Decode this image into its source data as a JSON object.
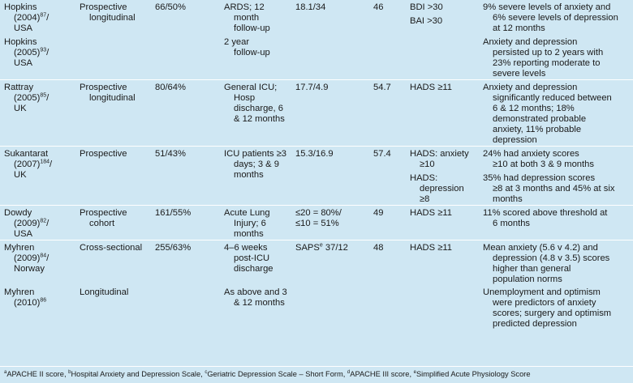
{
  "rows": [
    {
      "study": [
        [
          "Hopkins",
          "(2004)",
          "87",
          "/",
          "USA"
        ],
        [
          "Hopkins",
          "(2005)",
          "93",
          "/",
          "USA"
        ]
      ],
      "design": [
        "Prospective",
        "longitudinal"
      ],
      "n": "66/50%",
      "population": [
        [
          "ARDS; 12",
          "month",
          "follow-up"
        ],
        [
          "2 year",
          "follow-up"
        ]
      ],
      "severity": "18.1/34",
      "age": "46",
      "measure": [
        [
          "BDI >30"
        ],
        [
          "BAI >30"
        ]
      ],
      "findings": [
        [
          "9% severe levels of anxiety and",
          "6% severe levels of depression",
          "at 12 months"
        ],
        [
          "Anxiety and depression",
          "persisted up to 2 years with",
          "23% reporting moderate to",
          "severe levels"
        ]
      ]
    },
    {
      "study": [
        [
          "Rattray",
          "(2005)",
          "85",
          "/",
          "UK"
        ]
      ],
      "design": [
        "Prospective",
        "longitudinal"
      ],
      "n": "80/64%",
      "population": [
        [
          "General ICU;",
          "Hosp",
          "discharge, 6",
          "& 12 months"
        ]
      ],
      "severity": "17.7/4.9",
      "age": "54.7",
      "measure": [
        [
          "HADS ≥11"
        ]
      ],
      "findings": [
        [
          "Anxiety and depression",
          "significantly reduced between",
          "6 & 12 months; 18%",
          "demonstrated probable",
          "anxiety, 11% probable",
          "depression"
        ]
      ]
    },
    {
      "study": [
        [
          "Sukantarat",
          "(2007)",
          "184",
          "/",
          "UK"
        ]
      ],
      "design": [
        "Prospective"
      ],
      "n": "51/43%",
      "population": [
        [
          "ICU patients ≥3",
          "days; 3 & 9",
          "months"
        ]
      ],
      "severity": "15.3/16.9",
      "age": "57.4",
      "measure": [
        [
          "HADS: anxiety",
          "≥10"
        ],
        [
          "HADS:",
          "depression",
          "≥8"
        ]
      ],
      "findings": [
        [
          "24% had anxiety scores",
          "≥10 at both 3 & 9 months"
        ],
        [
          "35% had depression scores",
          "≥8 at 3 months and 45% at six",
          "months"
        ]
      ]
    },
    {
      "study": [
        [
          "Dowdy",
          "(2009)",
          "82",
          "/",
          "USA"
        ]
      ],
      "design": [
        "Prospective",
        "cohort"
      ],
      "n": "161/55%",
      "population": [
        [
          "Acute Lung",
          "Injury; 6",
          "months"
        ]
      ],
      "severity": [
        "≤20 = 80%/",
        "≤10 = 51%"
      ],
      "age": "49",
      "measure": [
        [
          "HADS ≥11"
        ]
      ],
      "findings": [
        [
          "11% scored above threshold at",
          "6 months"
        ]
      ]
    },
    {
      "study": [
        [
          "Myhren",
          "(2009)",
          "84",
          "/",
          "Norway"
        ]
      ],
      "design": [
        "Cross-sectional"
      ],
      "n": "255/63%",
      "population": [
        [
          "4–6 weeks",
          "post-ICU",
          "discharge"
        ]
      ],
      "severity_prefix": "SAPS",
      "severity_sup": "e",
      "severity_value": "37/12",
      "age": "48",
      "measure": [
        [
          "HADS ≥11"
        ]
      ],
      "findings": [
        [
          "Mean anxiety (5.6 v 4.2) and",
          "depression (4.8 v 3.5) scores",
          "higher than general",
          "population norms"
        ]
      ]
    },
    {
      "study": [
        [
          "Myhren",
          "(2010)",
          "86",
          "",
          ""
        ]
      ],
      "design": [
        "Longitudinal"
      ],
      "n": "",
      "population": [
        [
          "As above and 3",
          "& 12 months"
        ]
      ],
      "severity": "",
      "age": "",
      "measure": [],
      "findings": [
        [
          "Unemployment and optimism",
          "were predictors of anxiety",
          "scores; surgery and optimism",
          "predicted depression"
        ]
      ]
    }
  ],
  "footnotes": [
    {
      "mark": "a",
      "text": "APACHE II score, "
    },
    {
      "mark": "b",
      "text": "Hospital Anxiety and Depression Scale, "
    },
    {
      "mark": "c",
      "text": "Geriatric Depression Scale – Short Form, "
    },
    {
      "mark": "d",
      "text": "APACHE III score, "
    },
    {
      "mark": "e",
      "text": "Simplified Acute Physiology Score"
    }
  ]
}
